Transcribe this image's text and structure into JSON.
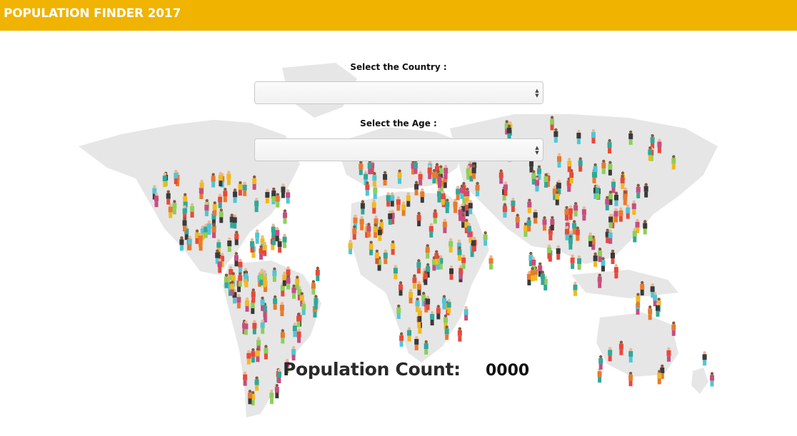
{
  "header": {
    "title": "POPULATION FINDER 2017"
  },
  "form": {
    "country": {
      "label": "Select the Country :",
      "value": ""
    },
    "age": {
      "label": "Select the Age :",
      "value": ""
    }
  },
  "result": {
    "label": "Population Count:",
    "value": "0000"
  },
  "colors": {
    "header_bg": "#efb300",
    "map_land": "#e6e6e6",
    "people": [
      "#e8493b",
      "#2fa89a",
      "#f0b91f",
      "#3a3a3a",
      "#4fc6d8",
      "#8ccf5a",
      "#c74d82",
      "#e87a2d"
    ]
  },
  "icons": {
    "select_arrows": "up-down-arrows-icon",
    "people": "person-figure-icon"
  }
}
